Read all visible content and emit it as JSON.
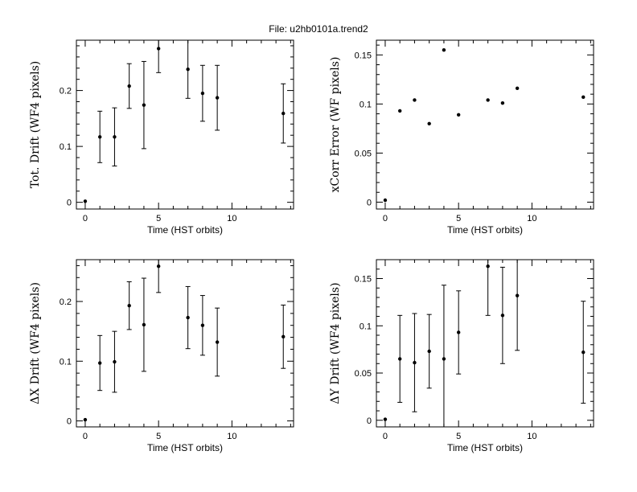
{
  "figure": {
    "title": "File: u2hb0101a.trend2"
  },
  "chart_data": [
    {
      "type": "scatter",
      "panel": "top-left",
      "title": "",
      "xlabel": "Time (HST orbits)",
      "ylabel": "Tot. Drift (WF4 pixels)",
      "xlim": [
        -0.6,
        14.2
      ],
      "ylim": [
        -0.012,
        0.29
      ],
      "xticks": [
        0,
        5,
        10
      ],
      "yticks": [
        0,
        0.1,
        0.2
      ],
      "ytick_labels": [
        "0",
        "0.1",
        "0.2"
      ],
      "grid": false,
      "series": [
        {
          "x": [
            0,
            1,
            2,
            3,
            4,
            5,
            7,
            8,
            9,
            13.5
          ],
          "y": [
            0.002,
            0.117,
            0.117,
            0.208,
            0.174,
            0.275,
            0.238,
            0.195,
            0.187,
            0.159
          ],
          "err": [
            0,
            0.046,
            0.052,
            0.04,
            0.078,
            0.043,
            0.052,
            0.05,
            0.058,
            0.053
          ]
        }
      ]
    },
    {
      "type": "scatter",
      "panel": "top-right",
      "title": "",
      "xlabel": "Time (HST orbits)",
      "ylabel": "xCorr Error (WF pixels)",
      "xlim": [
        -0.6,
        14.2
      ],
      "ylim": [
        -0.007,
        0.165
      ],
      "xticks": [
        0,
        5,
        10
      ],
      "yticks": [
        0,
        0.05,
        0.1,
        0.15
      ],
      "ytick_labels": [
        "0",
        "0.05",
        "0.1",
        "0.15"
      ],
      "grid": false,
      "series": [
        {
          "x": [
            0,
            1,
            2,
            3,
            4,
            5,
            7,
            8,
            9,
            13.5
          ],
          "y": [
            0.002,
            0.093,
            0.104,
            0.08,
            0.155,
            0.089,
            0.104,
            0.101,
            0.116,
            0.107
          ],
          "err": [
            0,
            0,
            0,
            0,
            0,
            0,
            0,
            0,
            0,
            0
          ]
        }
      ]
    },
    {
      "type": "scatter",
      "panel": "bottom-left",
      "title": "",
      "xlabel": "Time (HST orbits)",
      "ylabel": "ΔX Drift (WF4 pixels)",
      "xlim": [
        -0.6,
        14.2
      ],
      "ylim": [
        -0.01,
        0.27
      ],
      "xticks": [
        0,
        5,
        10
      ],
      "yticks": [
        0,
        0.1,
        0.2
      ],
      "ytick_labels": [
        "0",
        "0.1",
        "0.2"
      ],
      "grid": false,
      "series": [
        {
          "x": [
            0,
            1,
            2,
            3,
            4,
            5,
            7,
            8,
            9,
            13.5
          ],
          "y": [
            0.002,
            0.097,
            0.099,
            0.193,
            0.161,
            0.259,
            0.173,
            0.16,
            0.132,
            0.141
          ],
          "err": [
            0,
            0.046,
            0.051,
            0.04,
            0.078,
            0.044,
            0.052,
            0.05,
            0.057,
            0.053
          ]
        }
      ]
    },
    {
      "type": "scatter",
      "panel": "bottom-right",
      "title": "",
      "xlabel": "Time (HST orbits)",
      "ylabel": "ΔY Drift (WF4 pixels)",
      "xlim": [
        -0.6,
        14.2
      ],
      "ylim": [
        -0.007,
        0.17
      ],
      "xticks": [
        0,
        5,
        10
      ],
      "yticks": [
        0,
        0.05,
        0.1,
        0.15
      ],
      "ytick_labels": [
        "0",
        "0.05",
        "0.1",
        "0.15"
      ],
      "grid": false,
      "series": [
        {
          "x": [
            0,
            1,
            2,
            3,
            4,
            5,
            7,
            8,
            9,
            13.5
          ],
          "y": [
            0.001,
            0.065,
            0.061,
            0.073,
            0.065,
            0.093,
            0.163,
            0.111,
            0.132,
            0.072
          ],
          "err": [
            0,
            0.046,
            0.052,
            0.039,
            0.078,
            0.044,
            0.052,
            0.051,
            0.058,
            0.054
          ]
        }
      ]
    }
  ]
}
